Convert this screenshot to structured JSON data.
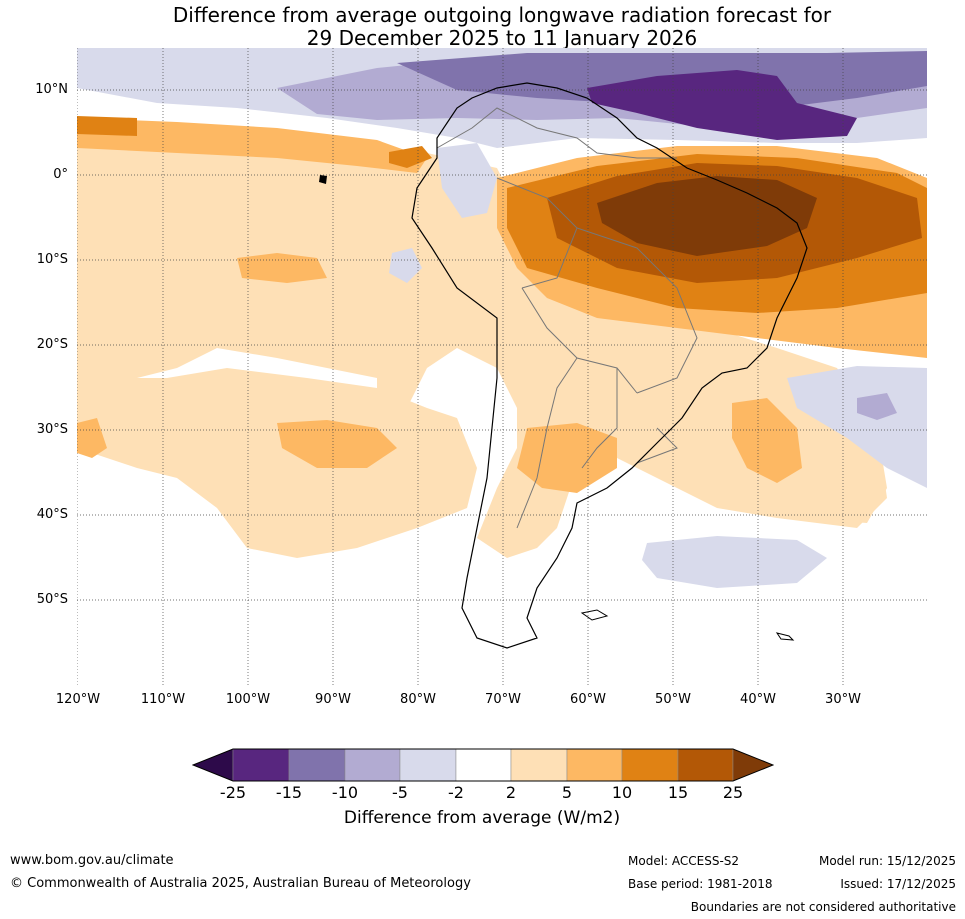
{
  "title": {
    "line1": "Difference from average outgoing longwave radiation forecast for",
    "line2": "29 December 2025 to 11 January 2026"
  },
  "map": {
    "lat_labels": [
      "10°N",
      "0°",
      "10°S",
      "20°S",
      "30°S",
      "40°S",
      "50°S"
    ],
    "lon_labels": [
      "120°W",
      "110°W",
      "100°W",
      "90°W",
      "80°W",
      "70°W",
      "60°W",
      "50°W",
      "40°W",
      "30°W"
    ]
  },
  "colorbar": {
    "ticks": [
      "-25",
      "-15",
      "-10",
      "-5",
      "-2",
      "2",
      "5",
      "10",
      "15",
      "25"
    ],
    "colors": [
      "#2d0a4a",
      "#58267f",
      "#8073ac",
      "#b2abd2",
      "#d8daeb",
      "#ffffff",
      "#fee0b6",
      "#fdb863",
      "#e08214",
      "#b35806",
      "#7f3b08"
    ],
    "title": "Difference from average (W/m2)"
  },
  "footer": {
    "website": "www.bom.gov.au/climate",
    "copyright": "© Commonwealth of Australia 2025, Australian Bureau of Meteorology",
    "model": "Model: ACCESS-S2",
    "base_period": "Base period: 1981-2018",
    "model_run": "Model run: 15/12/2025",
    "issued": "Issued: 17/12/2025",
    "disclaimer": "Boundaries are not considered authoritative"
  }
}
